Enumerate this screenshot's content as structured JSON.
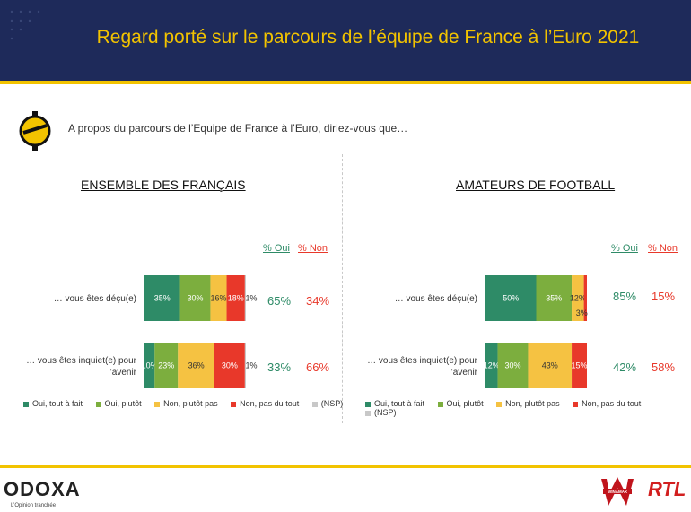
{
  "title": "Regard porté sur le parcours de l’équipe de France à l’Euro 2021",
  "question": "A propos du parcours de l’Equipe de France à l’Euro, diriez-vous que…",
  "colors": {
    "oui_tout": "#2e8b67",
    "oui_plutot": "#7cae3e",
    "non_plutot": "#f5c242",
    "non_pas": "#e8382a",
    "nsp": "#c8c8c8",
    "header": "#1e2a5a",
    "accent": "#f2c300"
  },
  "legend": [
    "Oui, tout à fait",
    "Oui, plutôt",
    "Non, plutôt pas",
    "Non, pas du tout",
    "(NSP)"
  ],
  "col_oui": "% Oui",
  "col_non": "% Non",
  "chart_data": [
    {
      "type": "bar",
      "stacked": true,
      "orientation": "horizontal",
      "title": "ENSEMBLE DES FRANÇAIS",
      "categories": [
        "… vous êtes déçu(e)",
        "… vous êtes inquiet(e) pour l’avenir"
      ],
      "series": [
        {
          "name": "Oui, tout à fait",
          "values": [
            35,
            10
          ],
          "labels": [
            "35%",
            "10%"
          ]
        },
        {
          "name": "Oui, plutôt",
          "values": [
            30,
            23
          ],
          "labels": [
            "30%",
            "23%"
          ]
        },
        {
          "name": "Non, plutôt pas",
          "values": [
            16,
            36
          ],
          "labels": [
            "16%",
            "36%"
          ]
        },
        {
          "name": "Non, pas du tout",
          "values": [
            18,
            30
          ],
          "labels": [
            "18%",
            "30%"
          ]
        },
        {
          "name": "(NSP)",
          "values": [
            1,
            1
          ],
          "labels": [
            "1%",
            "1%"
          ]
        }
      ],
      "oui": [
        "65%",
        "33%"
      ],
      "non": [
        "34%",
        "66%"
      ]
    },
    {
      "type": "bar",
      "stacked": true,
      "orientation": "horizontal",
      "title": "AMATEURS DE FOOTBALL",
      "categories": [
        "… vous êtes déçu(e)",
        "… vous êtes inquiet(e) pour l’avenir"
      ],
      "series": [
        {
          "name": "Oui, tout à fait",
          "values": [
            50,
            12
          ],
          "labels": [
            "50%",
            "12%"
          ]
        },
        {
          "name": "Oui, plutôt",
          "values": [
            35,
            30
          ],
          "labels": [
            "35%",
            "30%"
          ]
        },
        {
          "name": "Non, plutôt pas",
          "values": [
            12,
            43
          ],
          "labels": [
            "12%",
            "43%"
          ]
        },
        {
          "name": "Non, pas du tout",
          "values": [
            3,
            15
          ],
          "labels": [
            "3%",
            "15%"
          ]
        },
        {
          "name": "(NSP)",
          "values": [
            0,
            0
          ],
          "labels": [
            "",
            ""
          ]
        }
      ],
      "oui": [
        "85%",
        "42%"
      ],
      "non": [
        "15%",
        "58%"
      ]
    }
  ],
  "footer": {
    "brand": "ODOXA",
    "tagline": "L’Opinion tranchée",
    "partner1": "WINAMAX",
    "partner2": "RTL"
  }
}
